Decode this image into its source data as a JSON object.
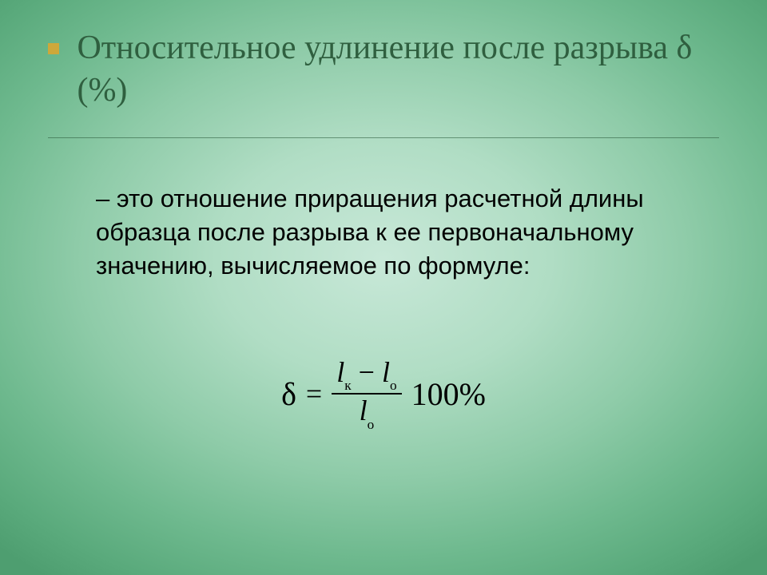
{
  "colors": {
    "title": "#2f5f3f",
    "bullet": "#cda83a",
    "body": "#000000",
    "rule": "#2f5f3f"
  },
  "title": {
    "text": "Относительное удлинение после разрыва δ (%)",
    "font_family": "Georgia, 'Times New Roman', serif",
    "font_size_pt": 32
  },
  "body": {
    "text": "– это отношение приращения расчетной длины образца после разрыва к ее первоначальному значению, вычисляемое по формуле:",
    "font_family": "Arial, sans-serif",
    "font_size_pt": 23
  },
  "formula": {
    "lhs_symbol": "δ",
    "equals": "=",
    "numerator": {
      "term1_var": "l",
      "term1_sub": "к",
      "operator": "−",
      "term2_var": "l",
      "term2_sub": "о"
    },
    "denominator": {
      "var": "l",
      "sub": "о"
    },
    "rhs_tail": "100%",
    "font_family": "'Times New Roman', Times, serif",
    "font_size_pt": 30
  }
}
